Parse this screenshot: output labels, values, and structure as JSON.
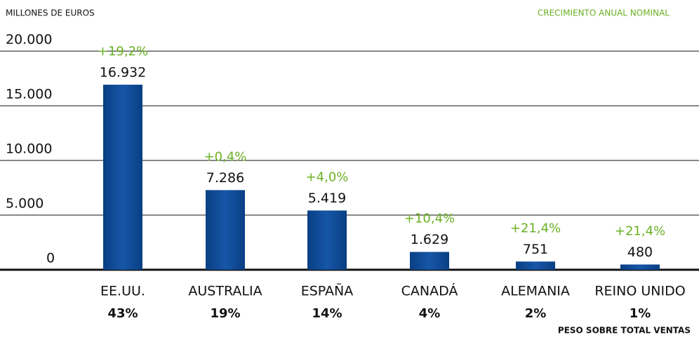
{
  "chart_data": {
    "type": "bar",
    "y_label": "MILLONES DE EUROS",
    "growth_caption": "CRECIMIENTO ANUAL NOMINAL",
    "share_caption": "PESO SOBRE TOTAL VENTAS",
    "categories": [
      "EE.UU.",
      "AUSTRALIA",
      "ESPAÑA",
      "CANADÁ",
      "ALEMANIA",
      "REINO UNIDO"
    ],
    "values": [
      16932,
      7286,
      5419,
      1629,
      751,
      480
    ],
    "value_labels": [
      "16.932",
      "7.286",
      "5.419",
      "1.629",
      "751",
      "480"
    ],
    "growth": [
      "+19,2%",
      "+0,4%",
      "+4,0%",
      "+10,4%",
      "+21,4%",
      "+21,4%"
    ],
    "share": [
      "43%",
      "19%",
      "14%",
      "4%",
      "2%",
      "1%"
    ],
    "color": "#0d4a94",
    "ylim": [
      0,
      20000
    ],
    "yticks": [
      0,
      {
        "value": 5000,
        "label": "5.000"
      },
      {
        "value": 10000,
        "label": "10.000"
      },
      {
        "value": 15000,
        "label": "15.000"
      },
      {
        "value": 20000,
        "label": "20.000"
      }
    ],
    "grid": true
  }
}
